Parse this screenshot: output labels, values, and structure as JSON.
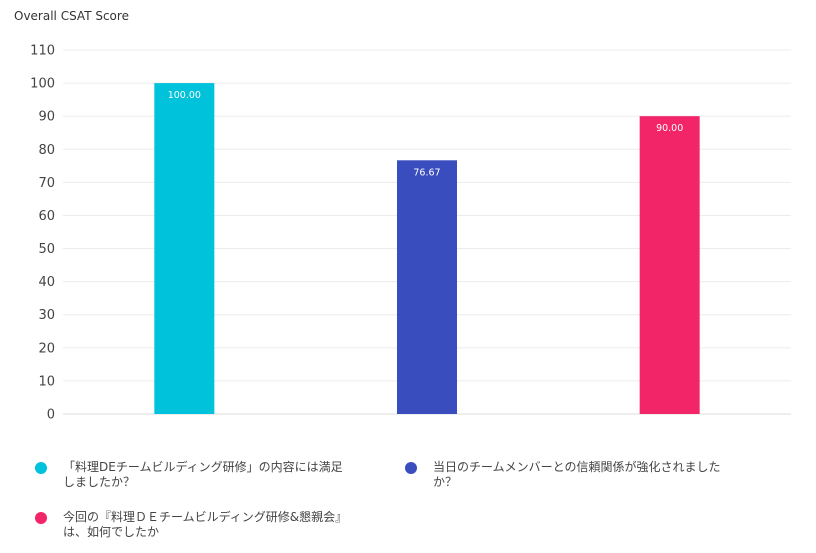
{
  "chart_data": {
    "type": "bar",
    "title": "Overall CSAT Score",
    "ylim": [
      0,
      110
    ],
    "yticks": [
      0,
      10,
      20,
      30,
      40,
      50,
      60,
      70,
      80,
      90,
      100,
      110
    ],
    "grid": true,
    "legend_position": "bottom",
    "series": [
      {
        "name": "「料理DEチームビルディング研修」の内容には満足しましたか？",
        "value": 100.0,
        "label": "100.00",
        "color": "#00C2DA"
      },
      {
        "name": "当日のチームメンバーとの信頼関係が強化されましたか？",
        "value": 76.67,
        "label": "76.67",
        "color": "#3A4DBE"
      },
      {
        "name": "今回の『料理ＤＥチームビルディング研修&懇親会』は、如何でしたか",
        "value": 90.0,
        "label": "90.00",
        "color": "#F12568"
      }
    ]
  },
  "legend": {
    "items": [
      {
        "line1": "「料理DEチームビルディング研修」の内容には満足",
        "line2": "しましたか？",
        "color": "#00C2DA"
      },
      {
        "line1": "当日のチームメンバーとの信頼関係が強化されました",
        "line2": "か？",
        "color": "#3A4DBE"
      },
      {
        "line1": "今回の『料理ＤＥチームビルディング研修&懇親会』",
        "line2": "は、如何でしたか",
        "color": "#F12568"
      }
    ]
  }
}
